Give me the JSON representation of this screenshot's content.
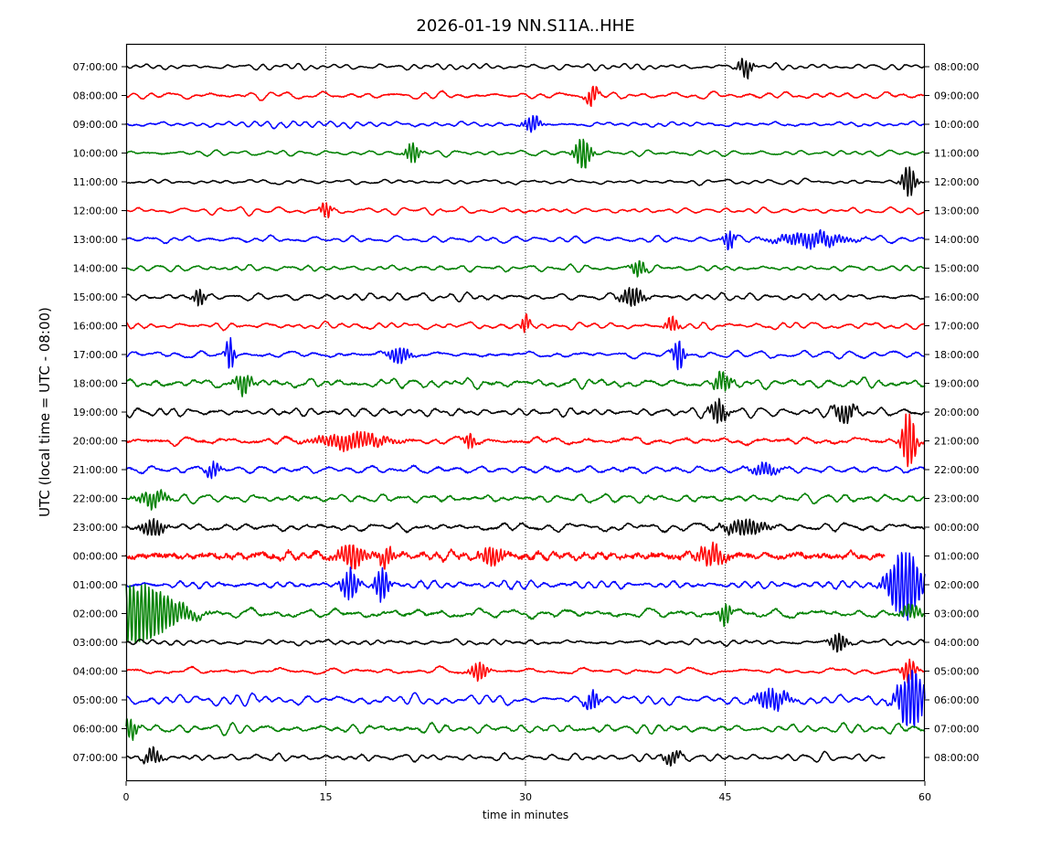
{
  "chart_data": {
    "type": "line",
    "title": "2026-01-19 NN.S11A..HHE",
    "xlabel": "time in minutes",
    "ylabel": "UTC (local time = UTC - 08:00)",
    "xlim": [
      0,
      60
    ],
    "x_ticks": [
      0,
      15,
      30,
      45,
      60
    ],
    "x_tick_labels": [
      "0",
      "15",
      "30",
      "45",
      "60"
    ],
    "grid": "vertical dotted lines at 15, 30, 45",
    "trace_colors": [
      "#000000",
      "#ff0000",
      "#0000ff",
      "#008000"
    ],
    "left_labels": [
      "07:00:00",
      "08:00:00",
      "09:00:00",
      "10:00:00",
      "11:00:00",
      "12:00:00",
      "13:00:00",
      "14:00:00",
      "15:00:00",
      "16:00:00",
      "17:00:00",
      "18:00:00",
      "19:00:00",
      "20:00:00",
      "21:00:00",
      "22:00:00",
      "23:00:00",
      "00:00:00",
      "01:00:00",
      "02:00:00",
      "03:00:00",
      "04:00:00",
      "05:00:00",
      "06:00:00",
      "07:00:00"
    ],
    "right_labels": [
      "08:00:00",
      "09:00:00",
      "10:00:00",
      "11:00:00",
      "12:00:00",
      "13:00:00",
      "14:00:00",
      "15:00:00",
      "16:00:00",
      "17:00:00",
      "18:00:00",
      "19:00:00",
      "20:00:00",
      "21:00:00",
      "22:00:00",
      "23:00:00",
      "00:00:00",
      "01:00:00",
      "02:00:00",
      "03:00:00",
      "04:00:00",
      "05:00:00",
      "06:00:00",
      "07:00:00",
      "08:00:00"
    ],
    "series": [
      {
        "amplitude": 0.35,
        "noise": 0.06,
        "end_minute": 60,
        "events": [
          {
            "t": 46.5,
            "amp": 1.0,
            "width": 0.5
          }
        ]
      },
      {
        "amplitude": 0.35,
        "noise": 0.1,
        "end_minute": 60,
        "events": [
          {
            "t": 35,
            "amp": 1.0,
            "width": 0.4
          }
        ]
      },
      {
        "amplitude": 0.3,
        "noise": 0.08,
        "end_minute": 60,
        "events": [
          {
            "t": 30.5,
            "amp": 0.8,
            "width": 0.6
          }
        ]
      },
      {
        "amplitude": 0.3,
        "noise": 0.08,
        "end_minute": 60,
        "events": [
          {
            "t": 21.5,
            "amp": 1.0,
            "width": 0.5
          },
          {
            "t": 34.3,
            "amp": 1.6,
            "width": 0.6
          }
        ]
      },
      {
        "amplitude": 0.3,
        "noise": 0.06,
        "end_minute": 60,
        "events": [
          {
            "t": 58.8,
            "amp": 1.6,
            "width": 0.5
          }
        ]
      },
      {
        "amplitude": 0.35,
        "noise": 0.08,
        "end_minute": 60,
        "events": [
          {
            "t": 15,
            "amp": 0.8,
            "width": 0.4
          }
        ]
      },
      {
        "amplitude": 0.3,
        "noise": 0.1,
        "end_minute": 60,
        "events": [
          {
            "t": 45.3,
            "amp": 1.0,
            "width": 0.4
          },
          {
            "t": 51.5,
            "amp": 0.7,
            "width": 2.5
          }
        ]
      },
      {
        "amplitude": 0.3,
        "noise": 0.1,
        "end_minute": 60,
        "events": [
          {
            "t": 38.5,
            "amp": 0.8,
            "width": 0.5
          }
        ]
      },
      {
        "amplitude": 0.35,
        "noise": 0.1,
        "end_minute": 60,
        "events": [
          {
            "t": 5.5,
            "amp": 0.9,
            "width": 0.4
          },
          {
            "t": 38,
            "amp": 1.0,
            "width": 0.8
          }
        ]
      },
      {
        "amplitude": 0.3,
        "noise": 0.1,
        "end_minute": 60,
        "events": [
          {
            "t": 30,
            "amp": 1.0,
            "width": 0.3
          },
          {
            "t": 41,
            "amp": 0.7,
            "width": 0.5
          }
        ]
      },
      {
        "amplitude": 0.35,
        "noise": 0.12,
        "end_minute": 60,
        "events": [
          {
            "t": 7.8,
            "amp": 1.8,
            "width": 0.3
          },
          {
            "t": 41.5,
            "amp": 1.6,
            "width": 0.4
          },
          {
            "t": 20.5,
            "amp": 0.8,
            "width": 0.8
          }
        ]
      },
      {
        "amplitude": 0.4,
        "noise": 0.16,
        "end_minute": 60,
        "events": [
          {
            "t": 8.8,
            "amp": 1.0,
            "width": 0.6
          },
          {
            "t": 44.8,
            "amp": 1.0,
            "width": 0.6
          }
        ]
      },
      {
        "amplitude": 0.45,
        "noise": 0.12,
        "end_minute": 60,
        "events": [
          {
            "t": 44.5,
            "amp": 1.2,
            "width": 0.6
          },
          {
            "t": 54,
            "amp": 0.9,
            "width": 0.8
          }
        ]
      },
      {
        "amplitude": 0.4,
        "noise": 0.18,
        "end_minute": 60,
        "events": [
          {
            "t": 17,
            "amp": 0.8,
            "width": 2.5
          },
          {
            "t": 25.8,
            "amp": 0.8,
            "width": 0.4
          },
          {
            "t": 58.8,
            "amp": 3.0,
            "width": 0.5
          }
        ]
      },
      {
        "amplitude": 0.4,
        "noise": 0.15,
        "end_minute": 60,
        "events": [
          {
            "t": 6.5,
            "amp": 0.8,
            "width": 0.5
          },
          {
            "t": 48,
            "amp": 0.6,
            "width": 1.0
          }
        ]
      },
      {
        "amplitude": 0.4,
        "noise": 0.15,
        "end_minute": 60,
        "events": [
          {
            "t": 2,
            "amp": 0.8,
            "width": 1.0
          }
        ]
      },
      {
        "amplitude": 0.4,
        "noise": 0.15,
        "end_minute": 60,
        "events": [
          {
            "t": 2,
            "amp": 0.9,
            "width": 0.8
          },
          {
            "t": 46.5,
            "amp": 0.8,
            "width": 1.5
          }
        ]
      },
      {
        "amplitude": 0.3,
        "noise": 0.4,
        "end_minute": 57,
        "events": [
          {
            "t": 17,
            "amp": 1.2,
            "width": 1.0
          },
          {
            "t": 19.5,
            "amp": 1.0,
            "width": 0.5
          },
          {
            "t": 27.5,
            "amp": 1.0,
            "width": 0.8
          },
          {
            "t": 44,
            "amp": 1.0,
            "width": 1.0
          }
        ]
      },
      {
        "amplitude": 0.35,
        "noise": 0.15,
        "end_minute": 60,
        "events": [
          {
            "t": 16.8,
            "amp": 1.6,
            "width": 0.6
          },
          {
            "t": 19.2,
            "amp": 1.8,
            "width": 0.5
          },
          {
            "t": 58.5,
            "amp": 3.5,
            "width": 1.2
          }
        ]
      },
      {
        "amplitude": 0.4,
        "noise": 0.18,
        "end_minute": 60,
        "events": [
          {
            "t": 0.8,
            "amp": 3.0,
            "width": 3.0
          },
          {
            "t": 45,
            "amp": 1.2,
            "width": 0.4
          },
          {
            "t": 59,
            "amp": 0.7,
            "width": 0.8
          }
        ]
      },
      {
        "amplitude": 0.3,
        "noise": 0.1,
        "end_minute": 60,
        "events": [
          {
            "t": 53.5,
            "amp": 1.0,
            "width": 0.6
          }
        ]
      },
      {
        "amplitude": 0.35,
        "noise": 0.12,
        "end_minute": 60,
        "events": [
          {
            "t": 26.5,
            "amp": 1.0,
            "width": 0.6
          },
          {
            "t": 58.8,
            "amp": 1.2,
            "width": 0.5
          }
        ]
      },
      {
        "amplitude": 0.45,
        "noise": 0.12,
        "end_minute": 60,
        "events": [
          {
            "t": 35,
            "amp": 1.0,
            "width": 0.5
          },
          {
            "t": 48.5,
            "amp": 1.0,
            "width": 1.2
          },
          {
            "t": 59,
            "amp": 3.0,
            "width": 1.0
          }
        ]
      },
      {
        "amplitude": 0.45,
        "noise": 0.15,
        "end_minute": 60,
        "events": [
          {
            "t": 0.3,
            "amp": 1.0,
            "width": 0.5
          }
        ]
      },
      {
        "amplitude": 0.35,
        "noise": 0.1,
        "end_minute": 57,
        "events": [
          {
            "t": 2,
            "amp": 0.8,
            "width": 0.6
          },
          {
            "t": 41,
            "amp": 0.7,
            "width": 0.6
          }
        ]
      }
    ]
  }
}
